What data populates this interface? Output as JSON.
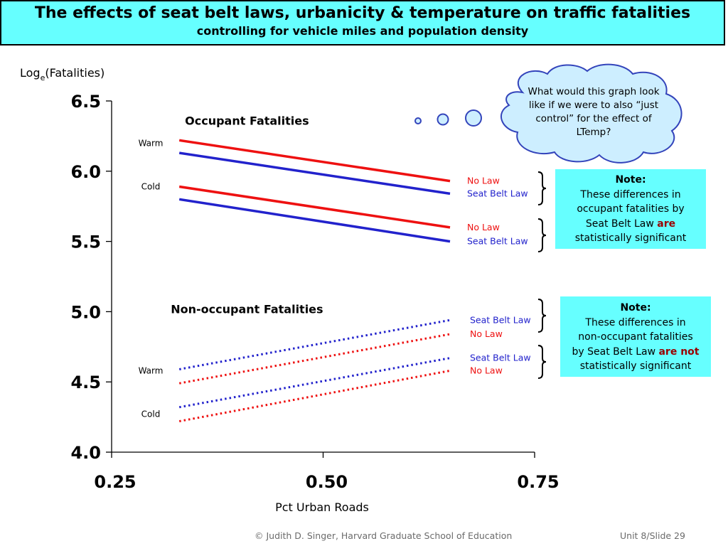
{
  "slide": {
    "title": "The effects of seat belt laws, urbanicity & temperature on traffic fatalities",
    "subtitle": "controlling for vehicle miles and population density",
    "footer_credit": "© Judith D. Singer, Harvard Graduate School of Education",
    "footer_slide": "Unit 8/Slide 29"
  },
  "thought_bubble": {
    "text_lines": [
      "What would this graph look",
      "like if we were to also “just",
      "control” for the effect of",
      "LTemp?"
    ]
  },
  "notes": [
    {
      "head": "Note:",
      "lines": [
        "These differences in",
        "occupant fatalities by"
      ],
      "last_prefix": "Seat Belt Law ",
      "last_highlight": "are",
      "tail": "statistically significant"
    },
    {
      "head": "Note:",
      "lines": [
        "These differences in",
        "non-occupant fatalities"
      ],
      "last_prefix": "by Seat Belt Law ",
      "last_highlight": "are not",
      "tail": "statistically significant"
    }
  ],
  "chart_data": {
    "type": "line",
    "ylabel_base": "Log",
    "ylabel_sub": "e",
    "ylabel_rest": "(Fatalities)",
    "xlabel": "Pct Urban Roads",
    "xlim": [
      0.25,
      0.75
    ],
    "ylim": [
      4.0,
      6.5
    ],
    "xticks": [
      "0.25",
      "0.50",
      "0.75"
    ],
    "yticks": [
      "4.0",
      "4.5",
      "5.0",
      "5.5",
      "6.0",
      "6.5"
    ],
    "group_labels": [
      {
        "text": "Occupant Fatalities",
        "x": 0.41,
        "y": 6.33
      },
      {
        "text": "Non-occupant Fatalities",
        "x": 0.41,
        "y": 4.99
      }
    ],
    "temp_labels": [
      {
        "text": "Warm",
        "y": 6.2
      },
      {
        "text": "Cold",
        "y": 5.89
      },
      {
        "text": "Warm",
        "y": 4.58
      },
      {
        "text": "Cold",
        "y": 4.27
      }
    ],
    "series": [
      {
        "name": "No Law",
        "group": "occupant",
        "temp": "Warm",
        "color": "#ee1111",
        "dashed": false,
        "x": [
          0.33,
          0.65
        ],
        "y": [
          6.22,
          5.93
        ]
      },
      {
        "name": "Seat Belt Law",
        "group": "occupant",
        "temp": "Warm",
        "color": "#2222cc",
        "dashed": false,
        "x": [
          0.33,
          0.65
        ],
        "y": [
          6.13,
          5.84
        ]
      },
      {
        "name": "No Law",
        "group": "occupant",
        "temp": "Cold",
        "color": "#ee1111",
        "dashed": false,
        "x": [
          0.33,
          0.65
        ],
        "y": [
          5.89,
          5.6
        ]
      },
      {
        "name": "Seat Belt Law",
        "group": "occupant",
        "temp": "Cold",
        "color": "#2222cc",
        "dashed": false,
        "x": [
          0.33,
          0.65
        ],
        "y": [
          5.8,
          5.5
        ]
      },
      {
        "name": "Seat Belt Law",
        "group": "non-occupant",
        "temp": "Warm",
        "color": "#2222cc",
        "dashed": true,
        "x": [
          0.33,
          0.65
        ],
        "y": [
          4.59,
          4.94
        ]
      },
      {
        "name": "No Law",
        "group": "non-occupant",
        "temp": "Warm",
        "color": "#ee1111",
        "dashed": true,
        "x": [
          0.33,
          0.65
        ],
        "y": [
          4.49,
          4.84
        ]
      },
      {
        "name": "Seat Belt Law",
        "group": "non-occupant",
        "temp": "Cold",
        "color": "#2222cc",
        "dashed": true,
        "x": [
          0.33,
          0.65
        ],
        "y": [
          4.32,
          4.67
        ]
      },
      {
        "name": "No Law",
        "group": "non-occupant",
        "temp": "Cold",
        "color": "#ee1111",
        "dashed": true,
        "x": [
          0.33,
          0.65
        ],
        "y": [
          4.22,
          4.58
        ]
      }
    ]
  }
}
